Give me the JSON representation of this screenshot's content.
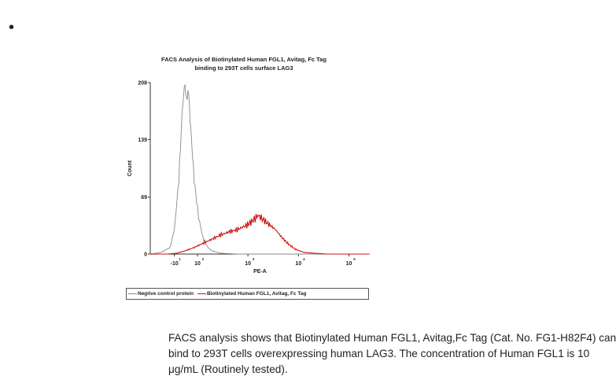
{
  "bullet": "•",
  "chart_data": {
    "type": "line",
    "title_line1": "FACS Analysis of Biotinylated Human FGL1, Avitag, Fc Tag",
    "title_line2": "binding to 293T cells surface LAG3",
    "xlabel": "PE-A",
    "ylabel": "Count",
    "ylim": [
      0,
      208
    ],
    "yticks": [
      "0",
      "69",
      "139",
      "208"
    ],
    "xticks": [
      {
        "base": "-10",
        "exp": "1"
      },
      {
        "base": "10",
        "exp": "2"
      },
      {
        "base": "10",
        "exp": "3"
      },
      {
        "base": "10",
        "exp": "4"
      },
      {
        "base": "10",
        "exp": "5"
      }
    ],
    "series": [
      {
        "name": "Negtive control protein",
        "color": "#8a8a8a",
        "points": [
          [
            0.0,
            0
          ],
          [
            0.05,
            2
          ],
          [
            0.09,
            8
          ],
          [
            0.11,
            30
          ],
          [
            0.13,
            90
          ],
          [
            0.145,
            170
          ],
          [
            0.155,
            205
          ],
          [
            0.165,
            190
          ],
          [
            0.175,
            195
          ],
          [
            0.185,
            150
          ],
          [
            0.2,
            90
          ],
          [
            0.22,
            45
          ],
          [
            0.24,
            20
          ],
          [
            0.26,
            9
          ],
          [
            0.28,
            4
          ],
          [
            0.32,
            1
          ],
          [
            0.4,
            0
          ],
          [
            1.0,
            0
          ]
        ]
      },
      {
        "name": "Biotinylated Human FGL1, Avitag, Fc Tag",
        "color": "#cc1111",
        "points": [
          [
            0.0,
            0
          ],
          [
            0.08,
            0
          ],
          [
            0.12,
            1
          ],
          [
            0.16,
            4
          ],
          [
            0.2,
            8
          ],
          [
            0.24,
            13
          ],
          [
            0.28,
            18
          ],
          [
            0.32,
            23
          ],
          [
            0.36,
            27
          ],
          [
            0.4,
            30
          ],
          [
            0.44,
            35
          ],
          [
            0.47,
            41
          ],
          [
            0.49,
            47
          ],
          [
            0.51,
            43
          ],
          [
            0.54,
            36
          ],
          [
            0.57,
            30
          ],
          [
            0.6,
            20
          ],
          [
            0.63,
            12
          ],
          [
            0.66,
            6
          ],
          [
            0.7,
            2
          ],
          [
            0.75,
            1
          ],
          [
            0.8,
            0
          ],
          [
            1.0,
            0
          ]
        ]
      }
    ]
  },
  "caption": {
    "line1": "FACS analysis shows that Biotinylated Human FGL1, Avitag,Fc Tag (Cat. No. FG1-H82F4) can",
    "line2": "bind to 293T cells overexpressing human LAG3. The concentration of Human FGL1 is 10",
    "line3": "μg/mL (Routinely tested)."
  }
}
